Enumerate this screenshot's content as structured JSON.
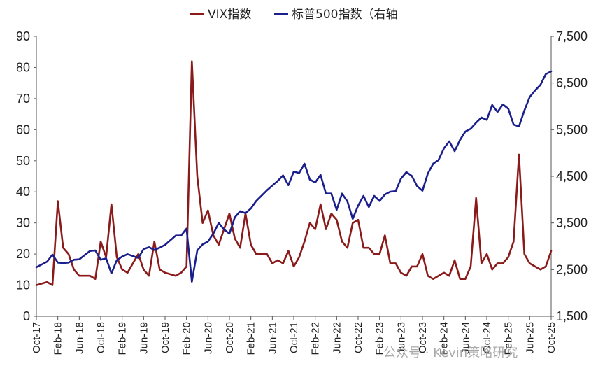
{
  "chart_data": {
    "type": "line",
    "legend_position": "top-center",
    "grid": false,
    "x_ticks": [
      "Oct-17",
      "Feb-18",
      "Jun-18",
      "Oct-18",
      "Feb-19",
      "Jun-19",
      "Oct-19",
      "Feb-20",
      "Jun-20",
      "Oct-20",
      "Feb-21",
      "Jun-21",
      "Oct-21",
      "Feb-22",
      "Jun-22",
      "Oct-22",
      "Feb-23",
      "Jun-23",
      "Oct-23",
      "Feb-24",
      "Jun-24",
      "Oct-24",
      "Feb-25",
      "Jun-25",
      "Oct-25"
    ],
    "y_left": {
      "ylim": [
        0,
        90
      ],
      "ticks": [
        "0",
        "10",
        "20",
        "30",
        "40",
        "50",
        "60",
        "70",
        "80",
        "90"
      ]
    },
    "y_right": {
      "ylim": [
        1500,
        7500
      ],
      "ticks": [
        "1,500",
        "2,500",
        "3,500",
        "4,500",
        "5,500",
        "6,500",
        "7,500"
      ]
    },
    "series": [
      {
        "name": "VIX指数",
        "axis": "left",
        "color": "#8b1a1a",
        "points": [
          [
            "Oct-17",
            10
          ],
          [
            "Dec-17",
            11
          ],
          [
            "Jan-18",
            10
          ],
          [
            "Feb-18",
            37
          ],
          [
            "Mar-18",
            22
          ],
          [
            "Apr-18",
            20
          ],
          [
            "May-18",
            15
          ],
          [
            "Jun-18",
            13
          ],
          [
            "Aug-18",
            13
          ],
          [
            "Sep-18",
            12
          ],
          [
            "Oct-18",
            24
          ],
          [
            "Nov-18",
            19
          ],
          [
            "Dec-18",
            36
          ],
          [
            "Jan-19",
            19
          ],
          [
            "Feb-19",
            15
          ],
          [
            "Mar-19",
            14
          ],
          [
            "May-19",
            20
          ],
          [
            "Jun-19",
            15
          ],
          [
            "Jul-19",
            13
          ],
          [
            "Aug-19",
            24
          ],
          [
            "Sep-19",
            15
          ],
          [
            "Oct-19",
            14
          ],
          [
            "Dec-19",
            13
          ],
          [
            "Jan-20",
            14
          ],
          [
            "Feb-20",
            16
          ],
          [
            "Mar-20",
            82
          ],
          [
            "Apr-20",
            45
          ],
          [
            "May-20",
            30
          ],
          [
            "Jun-20",
            34
          ],
          [
            "Jul-20",
            26
          ],
          [
            "Aug-20",
            23
          ],
          [
            "Sep-20",
            28
          ],
          [
            "Oct-20",
            33
          ],
          [
            "Nov-20",
            25
          ],
          [
            "Dec-20",
            22
          ],
          [
            "Jan-21",
            33
          ],
          [
            "Feb-21",
            23
          ],
          [
            "Mar-21",
            20
          ],
          [
            "May-21",
            20
          ],
          [
            "Jun-21",
            17
          ],
          [
            "Jul-21",
            18
          ],
          [
            "Aug-21",
            17
          ],
          [
            "Sep-21",
            21
          ],
          [
            "Oct-21",
            16
          ],
          [
            "Nov-21",
            19
          ],
          [
            "Dec-21",
            24
          ],
          [
            "Jan-22",
            30
          ],
          [
            "Feb-22",
            28
          ],
          [
            "Mar-22",
            36
          ],
          [
            "Apr-22",
            28
          ],
          [
            "May-22",
            33
          ],
          [
            "Jun-22",
            31
          ],
          [
            "Jul-22",
            24
          ],
          [
            "Aug-22",
            22
          ],
          [
            "Sep-22",
            30
          ],
          [
            "Oct-22",
            31
          ],
          [
            "Nov-22",
            22
          ],
          [
            "Dec-22",
            22
          ],
          [
            "Jan-23",
            20
          ],
          [
            "Feb-23",
            20
          ],
          [
            "Mar-23",
            26
          ],
          [
            "Apr-23",
            17
          ],
          [
            "May-23",
            17
          ],
          [
            "Jun-23",
            14
          ],
          [
            "Jul-23",
            13
          ],
          [
            "Aug-23",
            16
          ],
          [
            "Sep-23",
            16
          ],
          [
            "Oct-23",
            20
          ],
          [
            "Nov-23",
            13
          ],
          [
            "Dec-23",
            12
          ],
          [
            "Jan-24",
            13
          ],
          [
            "Feb-24",
            14
          ],
          [
            "Mar-24",
            13
          ],
          [
            "Apr-24",
            18
          ],
          [
            "May-24",
            12
          ],
          [
            "Jun-24",
            12
          ],
          [
            "Jul-24",
            16
          ],
          [
            "Aug-24",
            38
          ],
          [
            "Sep-24",
            17
          ],
          [
            "Oct-24",
            20
          ],
          [
            "Nov-24",
            15
          ],
          [
            "Dec-24",
            17
          ],
          [
            "Jan-25",
            17
          ],
          [
            "Feb-25",
            19
          ],
          [
            "Mar-25",
            24
          ],
          [
            "Apr-25",
            52
          ],
          [
            "May-25",
            20
          ],
          [
            "Jun-25",
            17
          ],
          [
            "Jul-25",
            16
          ],
          [
            "Aug-25",
            15
          ],
          [
            "Sep-25",
            16
          ],
          [
            "Oct-25",
            21
          ]
        ]
      },
      {
        "name": "标普500指数（右轴",
        "axis": "right",
        "color": "#1a1f8c",
        "points": [
          [
            "Oct-17",
            2550
          ],
          [
            "Dec-17",
            2670
          ],
          [
            "Jan-18",
            2820
          ],
          [
            "Feb-18",
            2650
          ],
          [
            "Mar-18",
            2640
          ],
          [
            "Apr-18",
            2650
          ],
          [
            "May-18",
            2710
          ],
          [
            "Jun-18",
            2720
          ],
          [
            "Aug-18",
            2900
          ],
          [
            "Sep-18",
            2910
          ],
          [
            "Oct-18",
            2710
          ],
          [
            "Nov-18",
            2740
          ],
          [
            "Dec-18",
            2420
          ],
          [
            "Jan-19",
            2700
          ],
          [
            "Feb-19",
            2780
          ],
          [
            "Mar-19",
            2830
          ],
          [
            "May-19",
            2750
          ],
          [
            "Jun-19",
            2940
          ],
          [
            "Jul-19",
            2980
          ],
          [
            "Aug-19",
            2920
          ],
          [
            "Sep-19",
            2970
          ],
          [
            "Oct-19",
            3030
          ],
          [
            "Dec-19",
            3230
          ],
          [
            "Jan-20",
            3230
          ],
          [
            "Feb-20",
            3380
          ],
          [
            "Mar-20",
            2240
          ],
          [
            "Apr-20",
            2910
          ],
          [
            "May-20",
            3040
          ],
          [
            "Jun-20",
            3100
          ],
          [
            "Jul-20",
            3270
          ],
          [
            "Aug-20",
            3500
          ],
          [
            "Sep-20",
            3360
          ],
          [
            "Oct-20",
            3270
          ],
          [
            "Nov-20",
            3620
          ],
          [
            "Dec-20",
            3750
          ],
          [
            "Jan-21",
            3710
          ],
          [
            "Feb-21",
            3810
          ],
          [
            "Mar-21",
            3970
          ],
          [
            "May-21",
            4200
          ],
          [
            "Jun-21",
            4300
          ],
          [
            "Jul-21",
            4400
          ],
          [
            "Aug-21",
            4520
          ],
          [
            "Sep-21",
            4310
          ],
          [
            "Oct-21",
            4600
          ],
          [
            "Nov-21",
            4570
          ],
          [
            "Dec-21",
            4770
          ],
          [
            "Jan-22",
            4430
          ],
          [
            "Feb-22",
            4370
          ],
          [
            "Mar-22",
            4530
          ],
          [
            "Apr-22",
            4130
          ],
          [
            "May-22",
            4130
          ],
          [
            "Jun-22",
            3780
          ],
          [
            "Jul-22",
            4130
          ],
          [
            "Aug-22",
            3960
          ],
          [
            "Sep-22",
            3590
          ],
          [
            "Oct-22",
            3870
          ],
          [
            "Nov-22",
            4080
          ],
          [
            "Dec-22",
            3840
          ],
          [
            "Jan-23",
            4080
          ],
          [
            "Feb-23",
            3970
          ],
          [
            "Mar-23",
            4110
          ],
          [
            "Apr-23",
            4170
          ],
          [
            "May-23",
            4180
          ],
          [
            "Jun-23",
            4450
          ],
          [
            "Jul-23",
            4590
          ],
          [
            "Aug-23",
            4510
          ],
          [
            "Sep-23",
            4290
          ],
          [
            "Oct-23",
            4190
          ],
          [
            "Nov-23",
            4560
          ],
          [
            "Dec-23",
            4770
          ],
          [
            "Jan-24",
            4850
          ],
          [
            "Feb-24",
            5100
          ],
          [
            "Mar-24",
            5250
          ],
          [
            "Apr-24",
            5040
          ],
          [
            "May-24",
            5280
          ],
          [
            "Jun-24",
            5460
          ],
          [
            "Jul-24",
            5520
          ],
          [
            "Aug-24",
            5650
          ],
          [
            "Sep-24",
            5760
          ],
          [
            "Oct-24",
            5710
          ],
          [
            "Nov-24",
            6030
          ],
          [
            "Dec-24",
            5880
          ],
          [
            "Jan-25",
            6040
          ],
          [
            "Feb-25",
            5950
          ],
          [
            "Mar-25",
            5610
          ],
          [
            "Apr-25",
            5570
          ],
          [
            "May-25",
            5910
          ],
          [
            "Jun-25",
            6200
          ],
          [
            "Jul-25",
            6340
          ],
          [
            "Aug-25",
            6460
          ],
          [
            "Sep-25",
            6690
          ],
          [
            "Oct-25",
            6750
          ]
        ]
      }
    ]
  },
  "watermark": "公众号 · Kevin策略研究"
}
